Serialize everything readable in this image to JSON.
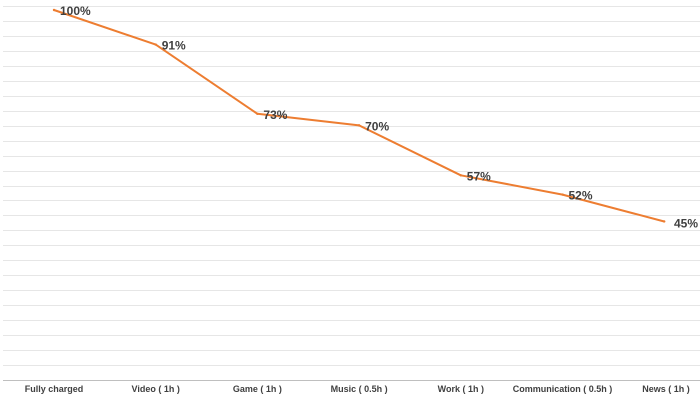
{
  "chart_data": {
    "type": "line",
    "categories": [
      "Fully charged",
      "Video ( 1h )",
      "Game ( 1h )",
      "Music ( 0.5h )",
      "Work ( 1h )",
      "Communication ( 0.5h )",
      "News ( 1h )"
    ],
    "series": [
      {
        "values": [
          100,
          91,
          73,
          70,
          57,
          52,
          45
        ],
        "color": "#ed7d31"
      }
    ],
    "data_labels": [
      "100%",
      "91%",
      "73%",
      "70%",
      "57%",
      "52%",
      "45%"
    ],
    "title": "",
    "xlabel": "",
    "ylabel": "",
    "ylim": [
      0,
      100
    ],
    "grid": true,
    "legend": "none"
  }
}
